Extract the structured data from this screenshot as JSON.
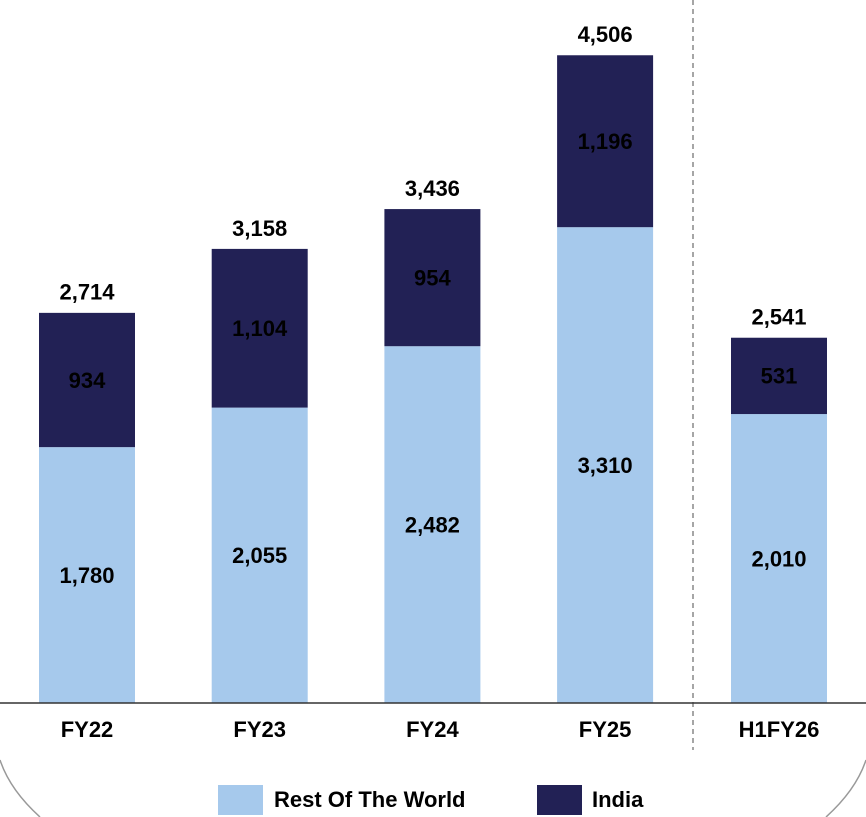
{
  "chart_data": {
    "type": "stacked_bar",
    "categories": [
      "FY22",
      "FY23",
      "FY24",
      "FY25",
      "H1FY26"
    ],
    "series": [
      {
        "name": "Rest Of The World",
        "color": "#a6c9ec",
        "values": [
          1780,
          2055,
          2482,
          3310,
          2010
        ],
        "value_labels": [
          "1,780",
          "2,055",
          "2,482",
          "3,310",
          "2,010"
        ]
      },
      {
        "name": "India",
        "color": "#222155",
        "values": [
          934,
          1104,
          954,
          1196,
          531
        ],
        "value_labels": [
          "934",
          "1,104",
          "954",
          "1,196",
          "531"
        ]
      }
    ],
    "totals": [
      2714,
      3158,
      3436,
      4506,
      2541
    ],
    "total_labels": [
      "2,714",
      "3,158",
      "3,436",
      "4,506",
      "2,541"
    ],
    "ylim": [
      0,
      4800
    ],
    "legend": "bottom"
  }
}
